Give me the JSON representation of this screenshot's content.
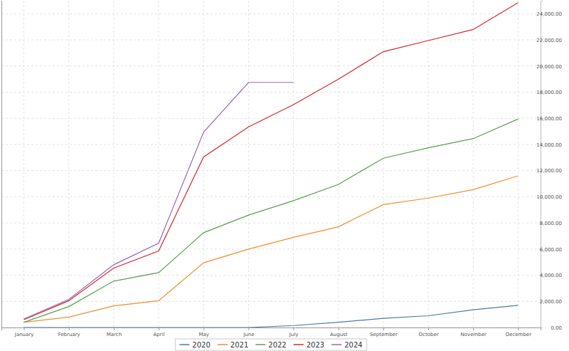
{
  "chart_data": {
    "type": "line",
    "categories": [
      "January",
      "February",
      "March",
      "April",
      "May",
      "June",
      "July",
      "August",
      "September",
      "October",
      "November",
      "December"
    ],
    "series": [
      {
        "name": "2020",
        "color": "#4e79a7",
        "values": [
          0,
          0,
          0,
          0,
          0,
          0,
          150,
          400,
          700,
          900,
          1350,
          1700
        ]
      },
      {
        "name": "2021",
        "color": "#f28e2b",
        "values": [
          400,
          800,
          1650,
          2050,
          4950,
          6000,
          6900,
          7700,
          9400,
          9900,
          10550,
          11600
        ]
      },
      {
        "name": "2022",
        "color": "#59a14f",
        "values": [
          400,
          1600,
          3550,
          4200,
          7250,
          8600,
          9700,
          10950,
          12950,
          13750,
          14450,
          15950
        ]
      },
      {
        "name": "2023",
        "color": "#d62728",
        "values": [
          600,
          2050,
          4550,
          5850,
          13050,
          15350,
          17050,
          19000,
          21100,
          21950,
          22800,
          24850
        ]
      },
      {
        "name": "2024",
        "color": "#9467bd",
        "values": [
          650,
          2150,
          4800,
          6450,
          14950,
          18750,
          18750,
          null,
          null,
          null,
          null,
          null
        ]
      }
    ],
    "ylim": [
      0,
      25000
    ],
    "yticks": [
      {
        "value": 0,
        "label": "0.00"
      },
      {
        "value": 2000,
        "label": "2,000.00"
      },
      {
        "value": 4000,
        "label": "4,000.00"
      },
      {
        "value": 6000,
        "label": "6,000.00"
      },
      {
        "value": 8000,
        "label": "8,000.00"
      },
      {
        "value": 10000,
        "label": "10,000.00"
      },
      {
        "value": 12000,
        "label": "12,000.00"
      },
      {
        "value": 14000,
        "label": "14,000.00"
      },
      {
        "value": 16000,
        "label": "16,000.00"
      },
      {
        "value": 18000,
        "label": "18,000.00"
      },
      {
        "value": 20000,
        "label": "20,000.00"
      },
      {
        "value": 22000,
        "label": "22,000.00"
      },
      {
        "value": 24000,
        "label": "24,000.00"
      }
    ],
    "grid": true,
    "legend": "bottom"
  }
}
